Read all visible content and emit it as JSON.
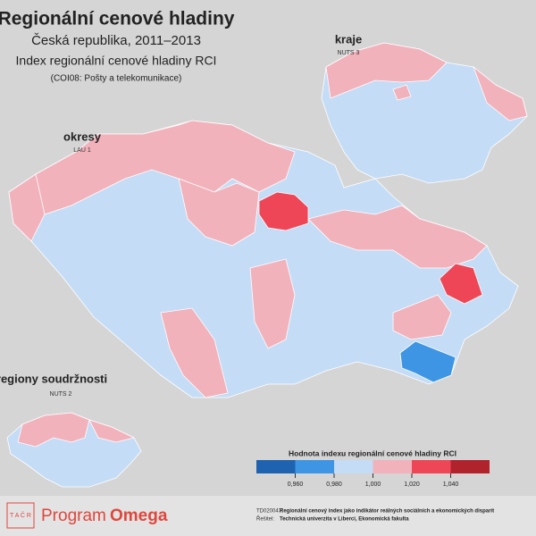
{
  "header": {
    "title": "Regionální cenové hladiny",
    "subtitle": "Česká republika, 2011–2013",
    "index_title": "Index regionální cenové hladiny RCI",
    "category": "(COI08: Pošty a telekomunikace)"
  },
  "maps": [
    {
      "name": "okresy",
      "level": "LAU 1"
    },
    {
      "name": "kraje",
      "level": "NUTS 3"
    },
    {
      "name": "regiony soudržnosti",
      "level": "NUTS 2"
    }
  ],
  "legend": {
    "title": "Hodnota indexu regionální cenové hladiny RCI",
    "colors": [
      "#1f63b0",
      "#3d95e4",
      "#c4dcf5",
      "#f2b2bc",
      "#ee4656",
      "#b0232d"
    ],
    "ticks": [
      {
        "value": 0.96,
        "label": "0,960"
      },
      {
        "value": 0.98,
        "label": "0,980"
      },
      {
        "value": 1,
        "label": "1,000"
      },
      {
        "value": 1.02,
        "label": "1,020"
      },
      {
        "value": 1.04,
        "label": "1,040"
      }
    ]
  },
  "footer": {
    "logo_letters": "T A Č R",
    "program": "Program",
    "program_name": "Omega",
    "project_code": "TD020047:",
    "project_name": "Regionální cenový index jako indikátor reálných sociálních a ekonomických disparit",
    "solver_label": "Řešitel:",
    "solver": "Technická univerzita v Liberci, Ekonomická fakulta"
  }
}
